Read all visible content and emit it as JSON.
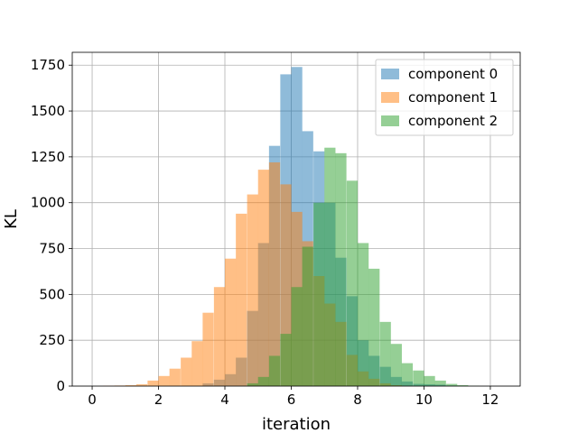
{
  "chart_data": {
    "type": "bar",
    "title": "",
    "xlabel": "iteration",
    "ylabel": "KL",
    "xlim": [
      -0.6,
      12.9
    ],
    "ylim": [
      0,
      1820
    ],
    "xticks": [
      0,
      2,
      4,
      6,
      8,
      10,
      12
    ],
    "yticks": [
      0,
      250,
      500,
      750,
      1000,
      1250,
      1500,
      1750
    ],
    "grid": true,
    "legend_position": "top-right",
    "series": [
      {
        "name": "component 0",
        "color": "#1f77b4",
        "bin_width": 0.333,
        "bins": [
          {
            "x": 3.33,
            "y": 15
          },
          {
            "x": 3.67,
            "y": 35
          },
          {
            "x": 4.0,
            "y": 65
          },
          {
            "x": 4.33,
            "y": 155
          },
          {
            "x": 4.67,
            "y": 410
          },
          {
            "x": 5.0,
            "y": 780
          },
          {
            "x": 5.33,
            "y": 1310
          },
          {
            "x": 5.67,
            "y": 1700
          },
          {
            "x": 6.0,
            "y": 1740
          },
          {
            "x": 6.33,
            "y": 1390
          },
          {
            "x": 6.67,
            "y": 1280
          },
          {
            "x": 7.0,
            "y": 1000
          },
          {
            "x": 7.33,
            "y": 700
          },
          {
            "x": 7.67,
            "y": 490
          },
          {
            "x": 8.0,
            "y": 250
          },
          {
            "x": 8.33,
            "y": 165
          },
          {
            "x": 8.67,
            "y": 105
          },
          {
            "x": 9.0,
            "y": 50
          },
          {
            "x": 9.33,
            "y": 25
          },
          {
            "x": 9.67,
            "y": 12
          },
          {
            "x": 10.0,
            "y": 10
          },
          {
            "x": 10.33,
            "y": 8
          },
          {
            "x": 10.67,
            "y": 3
          }
        ]
      },
      {
        "name": "component 1",
        "color": "#ff7f0e",
        "bin_width": 0.333,
        "bins": [
          {
            "x": 0.33,
            "y": 2
          },
          {
            "x": 0.67,
            "y": 3
          },
          {
            "x": 1.0,
            "y": 5
          },
          {
            "x": 1.33,
            "y": 10
          },
          {
            "x": 1.67,
            "y": 30
          },
          {
            "x": 2.0,
            "y": 55
          },
          {
            "x": 2.33,
            "y": 95
          },
          {
            "x": 2.67,
            "y": 155
          },
          {
            "x": 3.0,
            "y": 245
          },
          {
            "x": 3.33,
            "y": 400
          },
          {
            "x": 3.67,
            "y": 540
          },
          {
            "x": 4.0,
            "y": 695
          },
          {
            "x": 4.33,
            "y": 940
          },
          {
            "x": 4.67,
            "y": 1045
          },
          {
            "x": 5.0,
            "y": 1180
          },
          {
            "x": 5.33,
            "y": 1220
          },
          {
            "x": 5.67,
            "y": 1100
          },
          {
            "x": 6.0,
            "y": 950
          },
          {
            "x": 6.33,
            "y": 790
          },
          {
            "x": 6.67,
            "y": 600
          },
          {
            "x": 7.0,
            "y": 450
          },
          {
            "x": 7.33,
            "y": 350
          },
          {
            "x": 7.67,
            "y": 170
          },
          {
            "x": 8.0,
            "y": 80
          },
          {
            "x": 8.33,
            "y": 40
          },
          {
            "x": 8.67,
            "y": 15
          },
          {
            "x": 9.0,
            "y": 5
          }
        ]
      },
      {
        "name": "component 2",
        "color": "#2ca02c",
        "bin_width": 0.333,
        "bins": [
          {
            "x": 4.67,
            "y": 15
          },
          {
            "x": 5.0,
            "y": 50
          },
          {
            "x": 5.33,
            "y": 165
          },
          {
            "x": 5.67,
            "y": 285
          },
          {
            "x": 6.0,
            "y": 540
          },
          {
            "x": 6.33,
            "y": 760
          },
          {
            "x": 6.67,
            "y": 1000
          },
          {
            "x": 7.0,
            "y": 1300
          },
          {
            "x": 7.33,
            "y": 1270
          },
          {
            "x": 7.67,
            "y": 1120
          },
          {
            "x": 8.0,
            "y": 780
          },
          {
            "x": 8.33,
            "y": 640
          },
          {
            "x": 8.67,
            "y": 350
          },
          {
            "x": 9.0,
            "y": 230
          },
          {
            "x": 9.33,
            "y": 125
          },
          {
            "x": 9.67,
            "y": 85
          },
          {
            "x": 10.0,
            "y": 55
          },
          {
            "x": 10.33,
            "y": 30
          },
          {
            "x": 10.67,
            "y": 12
          },
          {
            "x": 11.0,
            "y": 5
          },
          {
            "x": 11.33,
            "y": 2
          }
        ]
      }
    ]
  }
}
